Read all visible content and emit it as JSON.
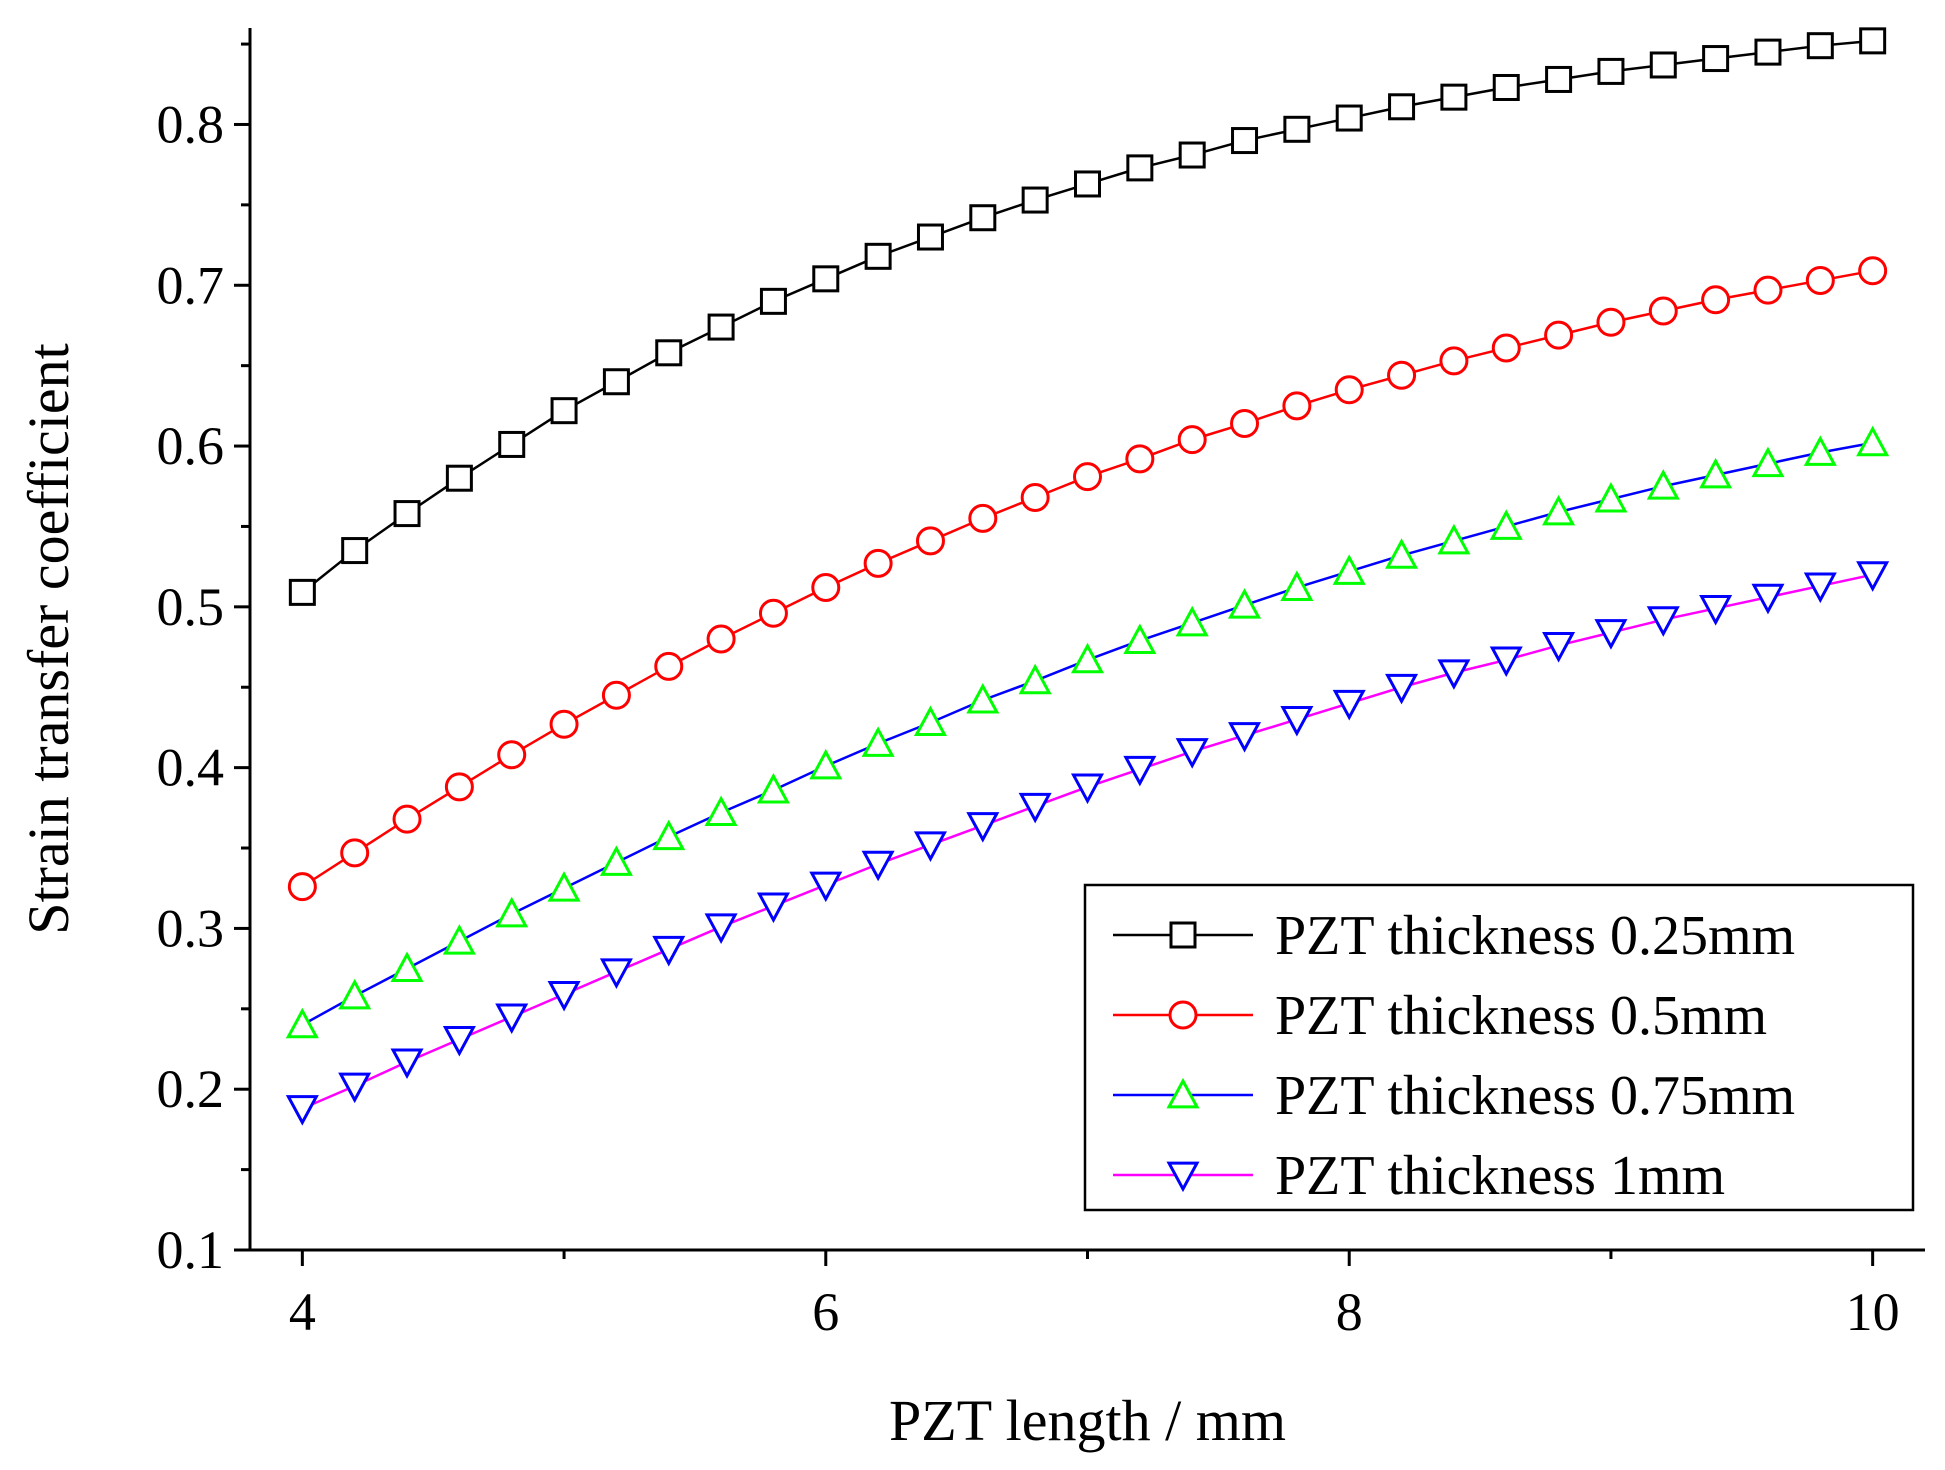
{
  "chart_data": {
    "type": "line",
    "title": "",
    "xlabel": "PZT length / mm",
    "ylabel": "Strain transfer coefficient",
    "xlim": [
      3.8,
      10.2
    ],
    "ylim": [
      0.1,
      0.86
    ],
    "xticks": [
      4,
      6,
      8,
      10
    ],
    "yticks": [
      0.1,
      0.2,
      0.3,
      0.4,
      0.5,
      0.6,
      0.7,
      0.8
    ],
    "xtick_labels": [
      "4",
      "6",
      "8",
      "10"
    ],
    "ytick_labels": [
      "0.1",
      "0.2",
      "0.3",
      "0.4",
      "0.5",
      "0.6",
      "0.7",
      "0.8"
    ],
    "legend_position": "bottom-right",
    "grid": false,
    "x": [
      4.0,
      4.2,
      4.4,
      4.6,
      4.8,
      5.0,
      5.2,
      5.4,
      5.6,
      5.8,
      6.0,
      6.2,
      6.4,
      6.6,
      6.8,
      7.0,
      7.2,
      7.4,
      7.6,
      7.8,
      8.0,
      8.2,
      8.4,
      8.6,
      8.8,
      9.0,
      9.2,
      9.4,
      9.6,
      9.8,
      10.0
    ],
    "series": [
      {
        "name": "PZT thickness 0.25mm",
        "marker": "square",
        "line_color": "#000000",
        "marker_color": "#000000",
        "values": [
          0.509,
          0.535,
          0.558,
          0.58,
          0.601,
          0.622,
          0.64,
          0.658,
          0.674,
          0.69,
          0.704,
          0.718,
          0.73,
          0.742,
          0.753,
          0.763,
          0.773,
          0.781,
          0.79,
          0.797,
          0.804,
          0.811,
          0.817,
          0.823,
          0.828,
          0.833,
          0.837,
          0.841,
          0.845,
          0.849,
          0.852
        ]
      },
      {
        "name": "PZT thickness 0.5mm",
        "marker": "circle",
        "line_color": "#ff0000",
        "marker_color": "#ff0000",
        "values": [
          0.326,
          0.347,
          0.368,
          0.388,
          0.408,
          0.427,
          0.445,
          0.463,
          0.48,
          0.496,
          0.512,
          0.527,
          0.541,
          0.555,
          0.568,
          0.581,
          0.592,
          0.604,
          0.614,
          0.625,
          0.635,
          0.644,
          0.653,
          0.661,
          0.669,
          0.677,
          0.684,
          0.691,
          0.697,
          0.703,
          0.709
        ]
      },
      {
        "name": "PZT thickness 0.75mm",
        "marker": "triangle-up",
        "line_color": "#0000ff",
        "marker_color": "#00ff00",
        "values": [
          0.24,
          0.258,
          0.275,
          0.292,
          0.309,
          0.325,
          0.341,
          0.357,
          0.372,
          0.386,
          0.401,
          0.415,
          0.428,
          0.442,
          0.454,
          0.467,
          0.479,
          0.49,
          0.501,
          0.512,
          0.522,
          0.532,
          0.541,
          0.55,
          0.559,
          0.567,
          0.575,
          0.582,
          0.589,
          0.596,
          0.602
        ]
      },
      {
        "name": "PZT thickness 1mm",
        "marker": "triangle-down",
        "line_color": "#ff00ff",
        "marker_color": "#0000ff",
        "values": [
          0.188,
          0.202,
          0.217,
          0.231,
          0.245,
          0.259,
          0.273,
          0.287,
          0.301,
          0.314,
          0.327,
          0.34,
          0.352,
          0.364,
          0.376,
          0.388,
          0.399,
          0.41,
          0.42,
          0.43,
          0.44,
          0.45,
          0.459,
          0.467,
          0.476,
          0.484,
          0.492,
          0.499,
          0.506,
          0.513,
          0.52
        ]
      }
    ]
  }
}
